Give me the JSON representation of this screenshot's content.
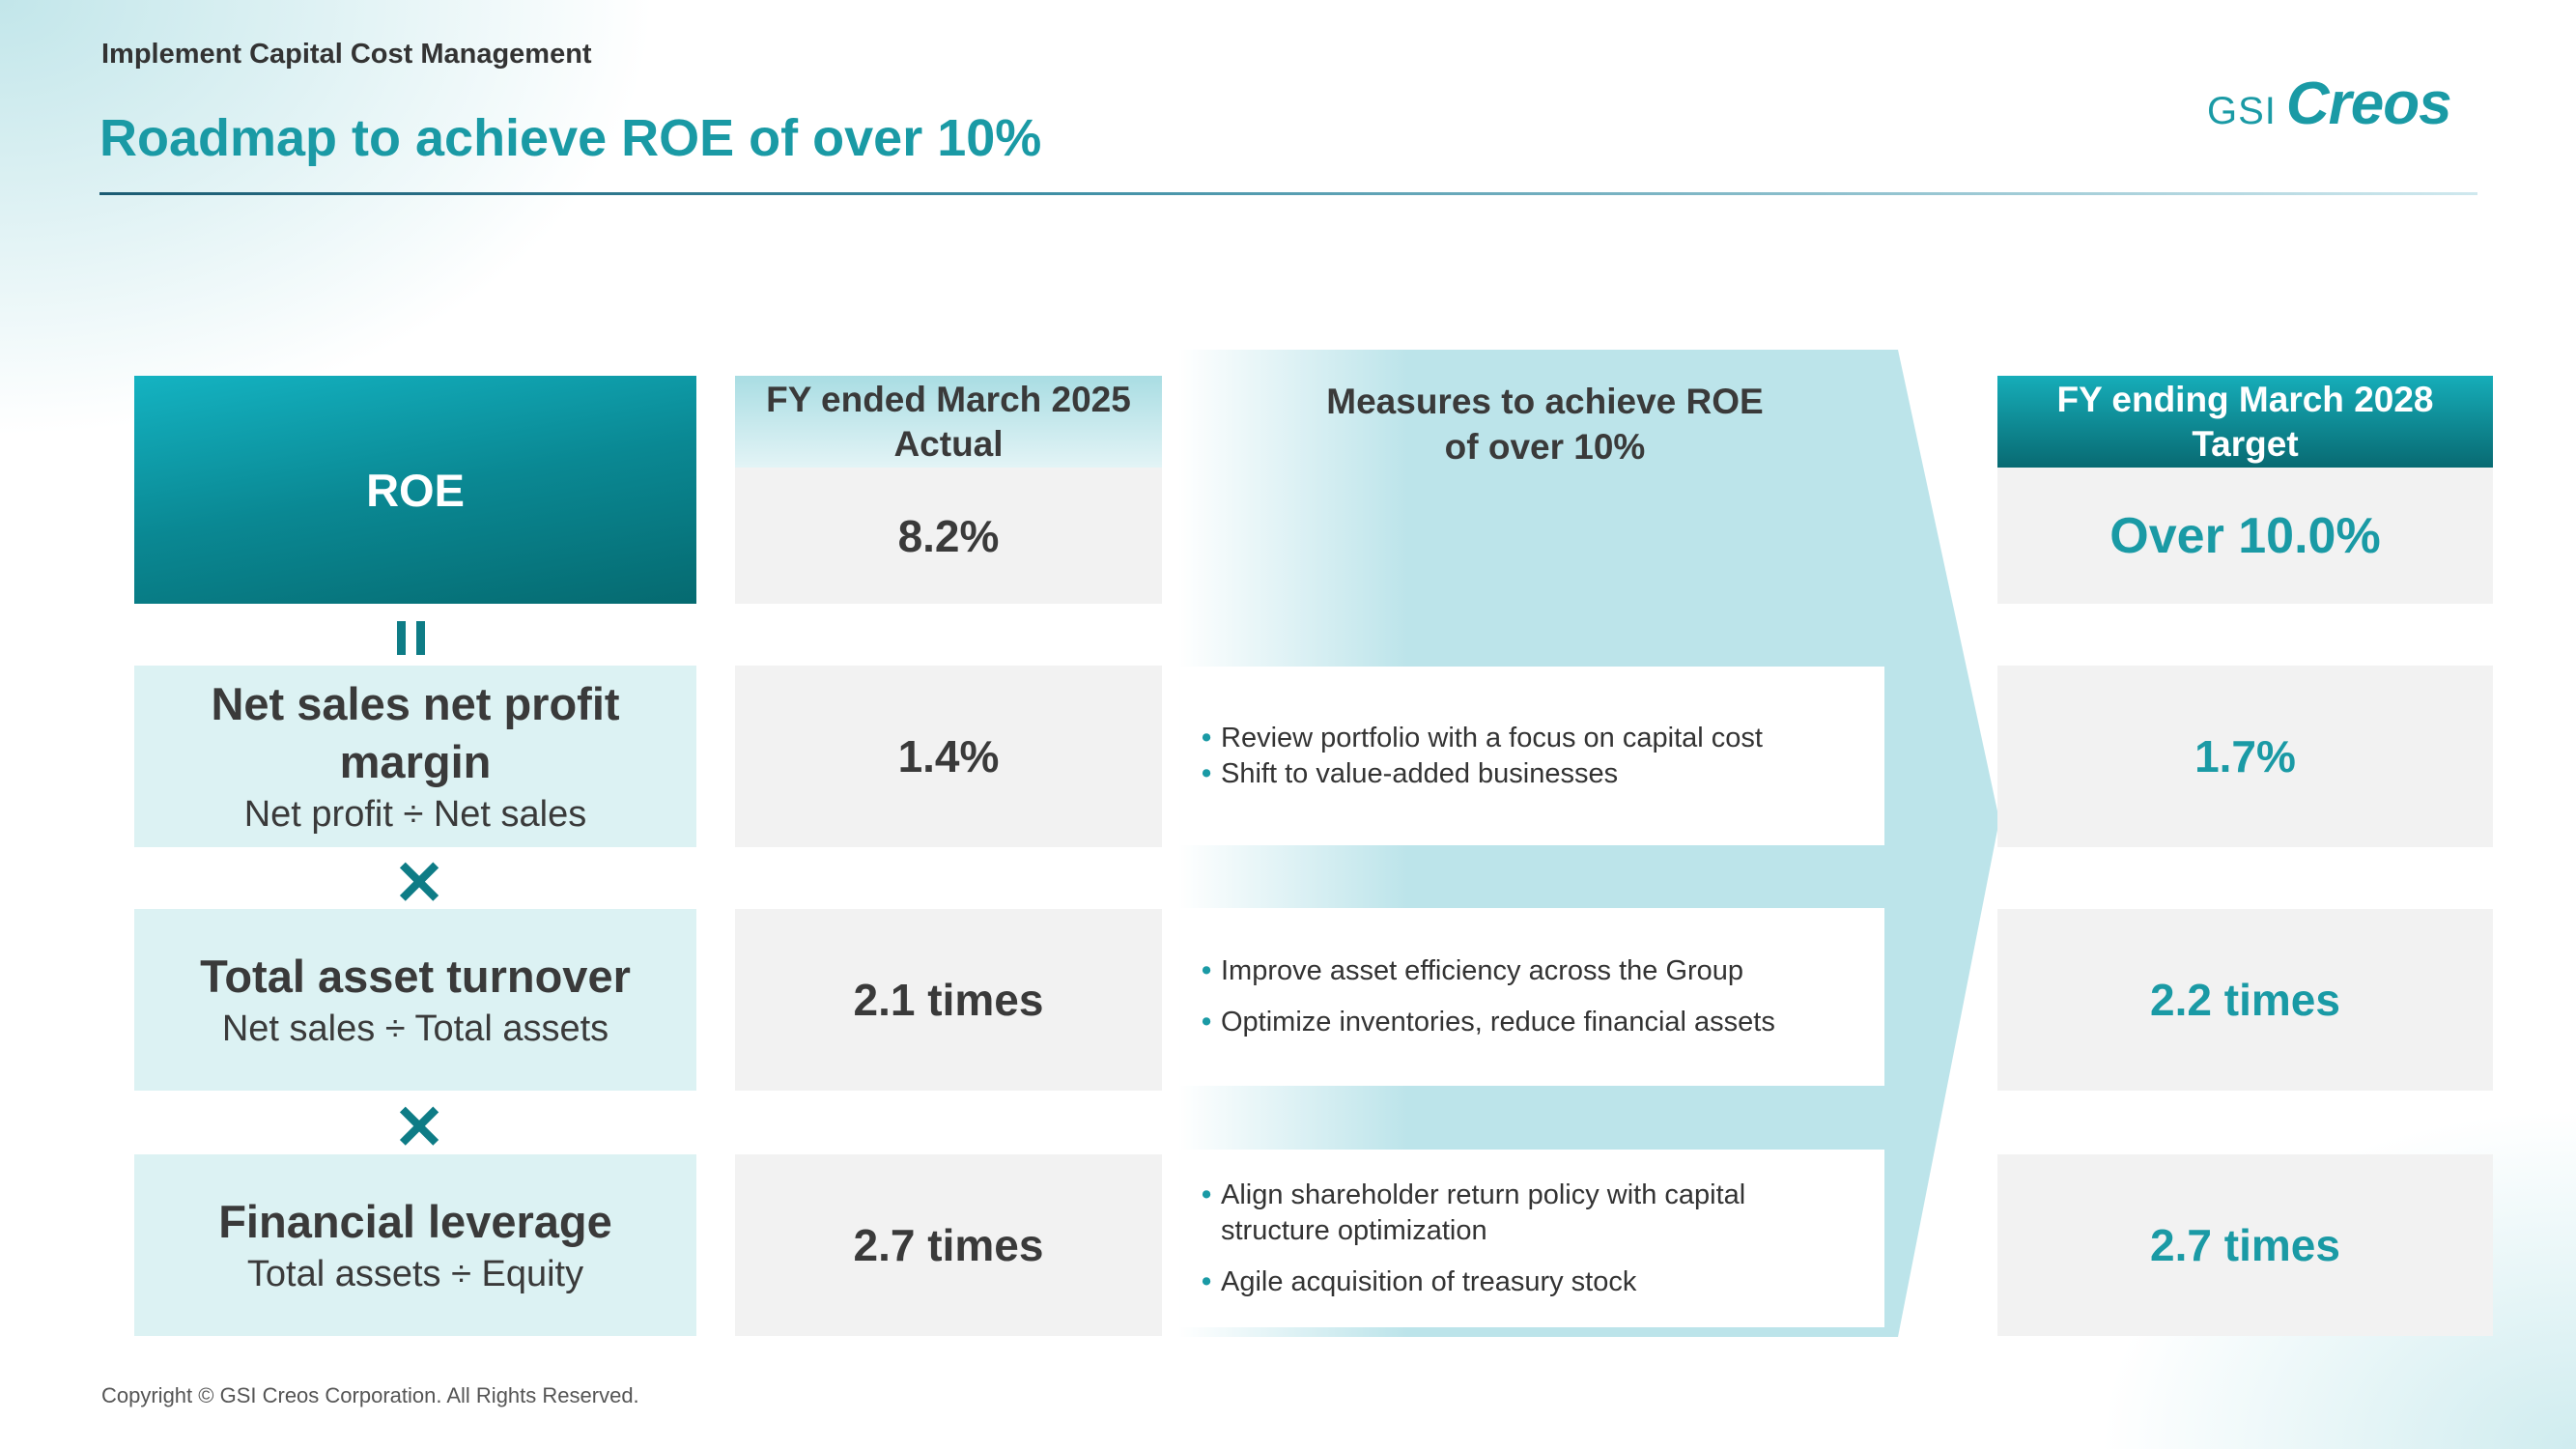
{
  "header": {
    "section_label": "Implement Capital Cost Management",
    "title": "Roadmap to achieve ROE of over 10%",
    "logo_gsi": "GSI",
    "logo_creos": "Creos"
  },
  "roe": {
    "label": "ROE",
    "equals_symbol": "=",
    "multiply_symbol": "✕"
  },
  "metrics": [
    {
      "name_line1": "Net sales net profit",
      "name_line2": "margin",
      "formula": "Net profit ÷ Net sales"
    },
    {
      "name": "Total asset turnover",
      "formula": "Net sales ÷ Total assets"
    },
    {
      "name": "Financial leverage",
      "formula": "Total assets ÷ Equity"
    }
  ],
  "actual": {
    "header_line1": "FY ended March 2025",
    "header_line2": "Actual",
    "roe": "8.2%",
    "values": [
      "1.4%",
      "2.1 times",
      "2.7 times"
    ]
  },
  "measures": {
    "header_line1": "Measures to achieve ROE",
    "header_line2": "of over 10%",
    "groups": [
      [
        "Review portfolio with a focus on capital cost",
        "Shift to value-added businesses"
      ],
      [
        "Improve asset efficiency across the Group",
        "Optimize inventories, reduce financial assets"
      ],
      [
        "Align shareholder return policy with capital structure optimization",
        "Agile acquisition of treasury stock"
      ]
    ]
  },
  "target": {
    "header_line1": "FY ending March 2028",
    "header_line2": "Target",
    "roe": "Over 10.0%",
    "values": [
      "1.7%",
      "2.2 times",
      "2.7 times"
    ]
  },
  "colors": {
    "accent": "#1a9aa5",
    "dark_teal": "#0e7c86",
    "metric_bg": "#dcf2f3",
    "value_bg": "#f2f2f2"
  },
  "footer": {
    "copyright": "Copyright © GSI Creos Corporation. All Rights Reserved."
  }
}
